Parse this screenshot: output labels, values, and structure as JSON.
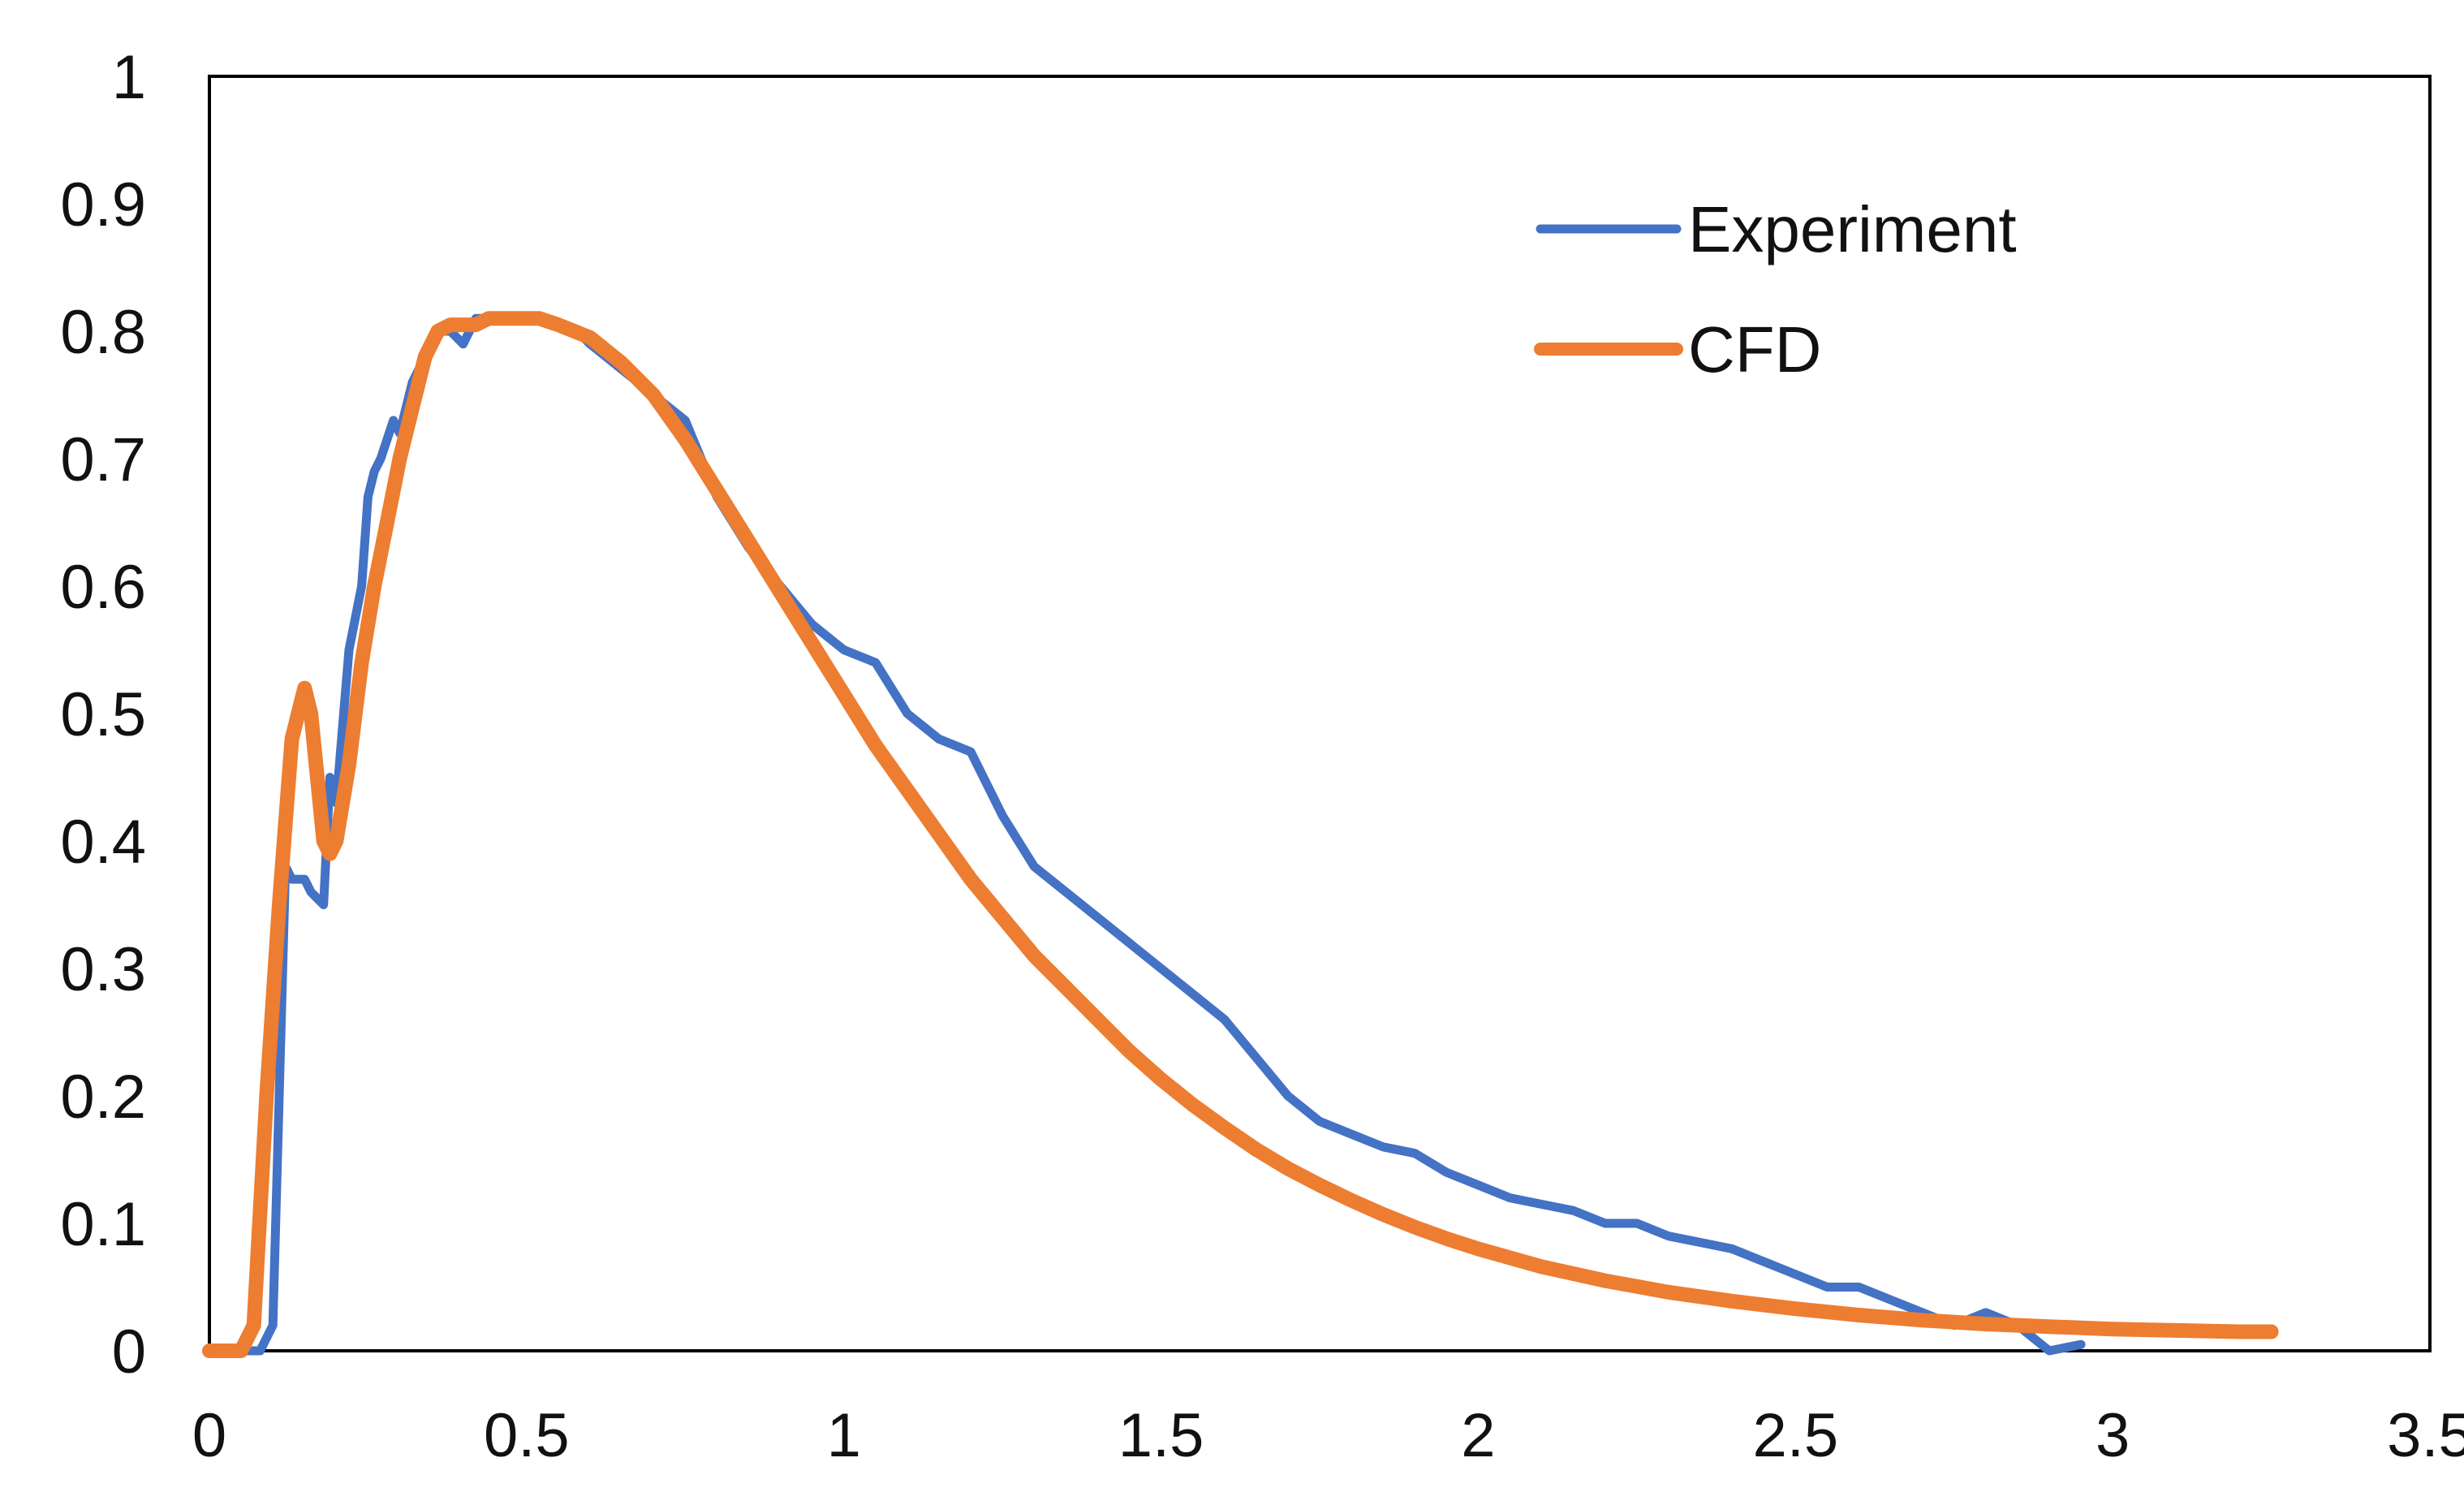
{
  "chart_data": {
    "type": "line",
    "title": "",
    "xlabel": "",
    "ylabel": "",
    "xlim": [
      0,
      3.5
    ],
    "ylim": [
      0,
      1
    ],
    "grid": false,
    "legend_position": "top-right",
    "x_ticks": [
      {
        "value": 0,
        "label": "0"
      },
      {
        "value": 0.5,
        "label": "0.5"
      },
      {
        "value": 1,
        "label": "1"
      },
      {
        "value": 1.5,
        "label": "1.5"
      },
      {
        "value": 2,
        "label": "2"
      },
      {
        "value": 2.5,
        "label": "2.5"
      },
      {
        "value": 3,
        "label": "3"
      },
      {
        "value": 3.5,
        "label": "3.5"
      }
    ],
    "y_ticks": [
      {
        "value": 0,
        "label": "0"
      },
      {
        "value": 0.1,
        "label": "0.1"
      },
      {
        "value": 0.2,
        "label": "0.2"
      },
      {
        "value": 0.3,
        "label": "0.3"
      },
      {
        "value": 0.4,
        "label": "0.4"
      },
      {
        "value": 0.5,
        "label": "0.5"
      },
      {
        "value": 0.6,
        "label": "0.6"
      },
      {
        "value": 0.7,
        "label": "0.7"
      },
      {
        "value": 0.8,
        "label": "0.8"
      },
      {
        "value": 0.9,
        "label": "0.9"
      },
      {
        "value": 1,
        "label": "1"
      }
    ],
    "series": [
      {
        "name": "Experiment",
        "color": "#4472C4",
        "x": [
          0,
          0.06,
          0.08,
          0.1,
          0.11,
          0.12,
          0.13,
          0.15,
          0.16,
          0.18,
          0.19,
          0.2,
          0.22,
          0.24,
          0.25,
          0.26,
          0.27,
          0.29,
          0.3,
          0.32,
          0.34,
          0.36,
          0.38,
          0.4,
          0.42,
          0.44,
          0.46,
          0.48,
          0.5,
          0.52,
          0.55,
          0.58,
          0.6,
          0.65,
          0.7,
          0.75,
          0.8,
          0.85,
          0.9,
          0.95,
          1.0,
          1.05,
          1.1,
          1.15,
          1.2,
          1.25,
          1.3,
          1.35,
          1.4,
          1.45,
          1.5,
          1.55,
          1.6,
          1.65,
          1.7,
          1.75,
          1.8,
          1.85,
          1.9,
          1.95,
          2.0,
          2.05,
          2.1,
          2.15,
          2.2,
          2.25,
          2.3,
          2.35,
          2.4,
          2.45,
          2.5,
          2.55,
          2.6,
          2.65,
          2.7,
          2.75,
          2.8,
          2.85,
          2.9,
          2.95
        ],
        "y": [
          0,
          0,
          0,
          0.02,
          0.2,
          0.38,
          0.37,
          0.37,
          0.36,
          0.35,
          0.45,
          0.43,
          0.55,
          0.6,
          0.67,
          0.69,
          0.7,
          0.73,
          0.72,
          0.76,
          0.78,
          0.8,
          0.8,
          0.79,
          0.81,
          0.81,
          0.81,
          0.81,
          0.81,
          0.81,
          0.805,
          0.8,
          0.79,
          0.77,
          0.75,
          0.73,
          0.67,
          0.63,
          0.6,
          0.57,
          0.55,
          0.54,
          0.5,
          0.48,
          0.47,
          0.42,
          0.38,
          0.36,
          0.34,
          0.32,
          0.3,
          0.28,
          0.26,
          0.23,
          0.2,
          0.18,
          0.17,
          0.16,
          0.155,
          0.14,
          0.13,
          0.12,
          0.115,
          0.11,
          0.1,
          0.1,
          0.09,
          0.085,
          0.08,
          0.07,
          0.06,
          0.05,
          0.05,
          0.04,
          0.03,
          0.02,
          0.03,
          0.02,
          0.0,
          0.005
        ]
      },
      {
        "name": "CFD",
        "color": "#ED7D31",
        "x": [
          0,
          0.05,
          0.07,
          0.09,
          0.11,
          0.13,
          0.15,
          0.16,
          0.17,
          0.18,
          0.19,
          0.2,
          0.22,
          0.24,
          0.26,
          0.28,
          0.3,
          0.32,
          0.34,
          0.36,
          0.38,
          0.4,
          0.42,
          0.44,
          0.46,
          0.48,
          0.5,
          0.52,
          0.55,
          0.6,
          0.65,
          0.7,
          0.75,
          0.8,
          0.85,
          0.9,
          0.95,
          1.0,
          1.05,
          1.1,
          1.15,
          1.2,
          1.25,
          1.3,
          1.35,
          1.4,
          1.45,
          1.5,
          1.55,
          1.6,
          1.65,
          1.7,
          1.75,
          1.8,
          1.85,
          1.9,
          1.95,
          2.0,
          2.1,
          2.2,
          2.3,
          2.4,
          2.5,
          2.6,
          2.7,
          2.8,
          2.9,
          3.0,
          3.1,
          3.2,
          3.25
        ],
        "y": [
          0,
          0,
          0.02,
          0.2,
          0.35,
          0.48,
          0.52,
          0.5,
          0.45,
          0.4,
          0.39,
          0.4,
          0.46,
          0.54,
          0.6,
          0.65,
          0.7,
          0.74,
          0.78,
          0.8,
          0.805,
          0.805,
          0.805,
          0.81,
          0.81,
          0.81,
          0.81,
          0.81,
          0.805,
          0.795,
          0.775,
          0.75,
          0.715,
          0.675,
          0.635,
          0.595,
          0.555,
          0.515,
          0.475,
          0.44,
          0.405,
          0.37,
          0.34,
          0.31,
          0.285,
          0.26,
          0.235,
          0.213,
          0.193,
          0.175,
          0.158,
          0.143,
          0.13,
          0.118,
          0.107,
          0.097,
          0.088,
          0.08,
          0.066,
          0.055,
          0.046,
          0.039,
          0.033,
          0.028,
          0.024,
          0.021,
          0.019,
          0.017,
          0.016,
          0.015,
          0.015
        ]
      }
    ]
  }
}
